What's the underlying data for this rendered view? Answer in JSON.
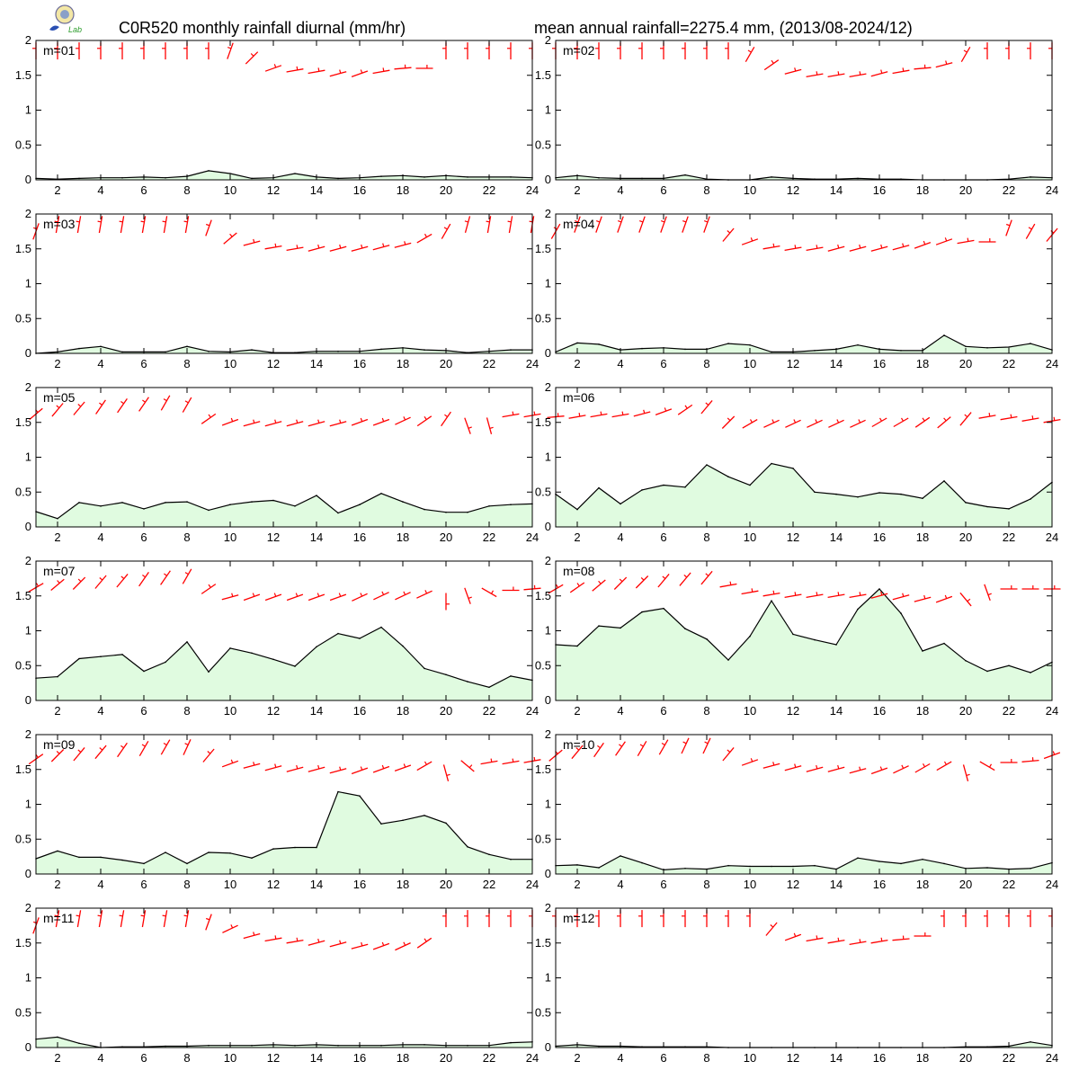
{
  "figure": {
    "title_left": "C0R520 monthly rainfall diurnal (mm/hr)",
    "title_right": "mean annual rainfall=2275.4 mm, (2013/08-2024/12)",
    "logo_text": "Lab"
  },
  "chart_data": {
    "type": "area",
    "x_ticks": [
      2,
      4,
      6,
      8,
      10,
      12,
      14,
      16,
      18,
      20,
      22,
      24
    ],
    "y_ticks": [
      "0",
      "0.5",
      "1",
      "1.5",
      "2"
    ],
    "xlim": [
      1,
      24
    ],
    "ylim": [
      0,
      2
    ],
    "colors": {
      "fill": "#e0fbe0",
      "line": "#000000",
      "wind": "#ff0000"
    },
    "wind_barbs": "red wind-direction barbs drawn along the top of every panel, one per hour",
    "panels": [
      {
        "label": "m=01",
        "x": [
          1,
          2,
          3,
          4,
          5,
          6,
          7,
          8,
          9,
          10,
          11,
          12,
          13,
          14,
          15,
          16,
          17,
          18,
          19,
          20,
          21,
          22,
          23,
          24
        ],
        "values": [
          0.02,
          0.01,
          0.02,
          0.03,
          0.03,
          0.04,
          0.03,
          0.05,
          0.13,
          0.09,
          0.02,
          0.03,
          0.09,
          0.04,
          0.02,
          0.03,
          0.05,
          0.06,
          0.04,
          0.06,
          0.04,
          0.04,
          0.04,
          0.03
        ],
        "barb_dirs": [
          0,
          0,
          0,
          0,
          0,
          0,
          0,
          0,
          0,
          20,
          45,
          70,
          80,
          80,
          75,
          70,
          80,
          85,
          90,
          0,
          0,
          0,
          0,
          0
        ],
        "barb_levels": [
          1.85,
          1.85,
          1.85,
          1.85,
          1.85,
          1.85,
          1.85,
          1.85,
          1.85,
          1.85,
          1.75,
          1.6,
          1.57,
          1.55,
          1.52,
          1.52,
          1.55,
          1.6,
          1.6,
          1.85,
          1.85,
          1.85,
          1.85,
          1.85
        ]
      },
      {
        "label": "m=02",
        "x": [
          1,
          2,
          3,
          4,
          5,
          6,
          7,
          8,
          9,
          10,
          11,
          12,
          13,
          14,
          15,
          16,
          17,
          18,
          19,
          20,
          21,
          22,
          23,
          24
        ],
        "values": [
          0.03,
          0.06,
          0.03,
          0.02,
          0.02,
          0.02,
          0.07,
          0.01,
          0.0,
          0.0,
          0.04,
          0.02,
          0.01,
          0.01,
          0.02,
          0.01,
          0.01,
          0.0,
          0.0,
          0.0,
          0.0,
          0.01,
          0.04,
          0.03
        ],
        "barb_dirs": [
          0,
          0,
          0,
          0,
          0,
          0,
          0,
          0,
          0,
          30,
          55,
          75,
          80,
          80,
          80,
          75,
          80,
          85,
          75,
          30,
          0,
          0,
          0,
          0
        ],
        "barb_levels": [
          1.85,
          1.85,
          1.85,
          1.85,
          1.85,
          1.85,
          1.85,
          1.85,
          1.85,
          1.8,
          1.65,
          1.55,
          1.5,
          1.5,
          1.5,
          1.52,
          1.55,
          1.6,
          1.65,
          1.8,
          1.85,
          1.85,
          1.85,
          1.85
        ]
      },
      {
        "label": "m=03",
        "x": [
          1,
          2,
          3,
          4,
          5,
          6,
          7,
          8,
          9,
          10,
          11,
          12,
          13,
          14,
          15,
          16,
          17,
          18,
          19,
          20,
          21,
          22,
          23,
          24
        ],
        "values": [
          0.0,
          0.02,
          0.07,
          0.1,
          0.02,
          0.02,
          0.02,
          0.1,
          0.03,
          0.02,
          0.05,
          0.01,
          0.01,
          0.03,
          0.03,
          0.03,
          0.06,
          0.08,
          0.05,
          0.04,
          0.01,
          0.03,
          0.05,
          0.05
        ],
        "barb_dirs": [
          20,
          10,
          10,
          10,
          10,
          10,
          10,
          10,
          20,
          50,
          75,
          80,
          80,
          75,
          75,
          75,
          75,
          75,
          60,
          30,
          15,
          10,
          10,
          10
        ],
        "barb_levels": [
          1.75,
          1.85,
          1.85,
          1.85,
          1.85,
          1.85,
          1.85,
          1.85,
          1.8,
          1.65,
          1.58,
          1.52,
          1.5,
          1.5,
          1.5,
          1.5,
          1.52,
          1.55,
          1.65,
          1.75,
          1.85,
          1.85,
          1.85,
          1.85
        ]
      },
      {
        "label": "m=04",
        "x": [
          1,
          2,
          3,
          4,
          5,
          6,
          7,
          8,
          9,
          10,
          11,
          12,
          13,
          14,
          15,
          16,
          17,
          18,
          19,
          20,
          21,
          22,
          23,
          24
        ],
        "values": [
          0.02,
          0.15,
          0.13,
          0.05,
          0.07,
          0.08,
          0.06,
          0.06,
          0.14,
          0.12,
          0.02,
          0.02,
          0.04,
          0.06,
          0.12,
          0.06,
          0.04,
          0.04,
          0.26,
          0.1,
          0.08,
          0.09,
          0.14,
          0.05
        ],
        "barb_dirs": [
          30,
          20,
          20,
          20,
          20,
          20,
          20,
          20,
          40,
          70,
          80,
          80,
          80,
          75,
          75,
          75,
          75,
          70,
          70,
          80,
          90,
          20,
          30,
          40
        ],
        "barb_levels": [
          1.75,
          1.85,
          1.85,
          1.85,
          1.85,
          1.85,
          1.85,
          1.85,
          1.7,
          1.6,
          1.52,
          1.5,
          1.5,
          1.5,
          1.5,
          1.5,
          1.52,
          1.55,
          1.6,
          1.6,
          1.6,
          1.8,
          1.75,
          1.7
        ]
      },
      {
        "label": "m=05",
        "x": [
          1,
          2,
          3,
          4,
          5,
          6,
          7,
          8,
          9,
          10,
          11,
          12,
          13,
          14,
          15,
          16,
          17,
          18,
          19,
          20,
          21,
          22,
          23,
          24
        ],
        "values": [
          0.22,
          0.12,
          0.35,
          0.3,
          0.35,
          0.26,
          0.35,
          0.36,
          0.24,
          0.32,
          0.36,
          0.38,
          0.3,
          0.45,
          0.2,
          0.32,
          0.48,
          0.36,
          0.25,
          0.21,
          0.21,
          0.3,
          0.32,
          0.33
        ],
        "barb_dirs": [
          50,
          40,
          40,
          35,
          35,
          35,
          30,
          30,
          55,
          70,
          75,
          75,
          75,
          75,
          75,
          70,
          70,
          65,
          55,
          35,
          160,
          165,
          80,
          80
        ],
        "barb_levels": [
          1.62,
          1.68,
          1.7,
          1.72,
          1.74,
          1.76,
          1.78,
          1.75,
          1.55,
          1.5,
          1.48,
          1.48,
          1.48,
          1.48,
          1.48,
          1.5,
          1.5,
          1.52,
          1.52,
          1.55,
          1.45,
          1.45,
          1.6,
          1.6
        ]
      },
      {
        "label": "m=06",
        "x": [
          1,
          2,
          3,
          4,
          5,
          6,
          7,
          8,
          9,
          10,
          11,
          12,
          13,
          14,
          15,
          16,
          17,
          18,
          19,
          20,
          21,
          22,
          23,
          24
        ],
        "values": [
          0.47,
          0.25,
          0.56,
          0.33,
          0.53,
          0.6,
          0.57,
          0.89,
          0.72,
          0.6,
          0.91,
          0.84,
          0.5,
          0.47,
          0.43,
          0.49,
          0.47,
          0.41,
          0.66,
          0.35,
          0.29,
          0.26,
          0.4,
          0.64
        ],
        "barb_dirs": [
          85,
          80,
          80,
          80,
          75,
          70,
          55,
          40,
          45,
          60,
          65,
          65,
          65,
          65,
          65,
          60,
          60,
          55,
          50,
          40,
          80,
          80,
          80,
          80
        ],
        "barb_levels": [
          1.58,
          1.58,
          1.6,
          1.6,
          1.62,
          1.65,
          1.68,
          1.72,
          1.5,
          1.48,
          1.48,
          1.48,
          1.48,
          1.48,
          1.48,
          1.5,
          1.5,
          1.5,
          1.5,
          1.55,
          1.58,
          1.56,
          1.54,
          1.52
        ]
      },
      {
        "label": "m=07",
        "x": [
          1,
          2,
          3,
          4,
          5,
          6,
          7,
          8,
          9,
          10,
          11,
          12,
          13,
          14,
          15,
          16,
          17,
          18,
          19,
          20,
          21,
          22,
          23,
          24
        ],
        "values": [
          0.32,
          0.34,
          0.6,
          0.63,
          0.66,
          0.42,
          0.55,
          0.84,
          0.41,
          0.75,
          0.68,
          0.59,
          0.49,
          0.77,
          0.96,
          0.89,
          1.05,
          0.78,
          0.46,
          0.37,
          0.27,
          0.19,
          0.35,
          0.29
        ],
        "barb_dirs": [
          60,
          50,
          45,
          40,
          40,
          35,
          35,
          30,
          55,
          75,
          70,
          70,
          70,
          70,
          70,
          65,
          65,
          65,
          65,
          180,
          160,
          120,
          90,
          85
        ],
        "barb_levels": [
          1.62,
          1.66,
          1.68,
          1.7,
          1.72,
          1.74,
          1.76,
          1.78,
          1.6,
          1.48,
          1.48,
          1.48,
          1.48,
          1.48,
          1.48,
          1.48,
          1.5,
          1.5,
          1.52,
          1.42,
          1.5,
          1.55,
          1.58,
          1.6
        ]
      },
      {
        "label": "m=08",
        "x": [
          1,
          2,
          3,
          4,
          5,
          6,
          7,
          8,
          9,
          10,
          11,
          12,
          13,
          14,
          15,
          16,
          17,
          18,
          19,
          20,
          21,
          22,
          23,
          24
        ],
        "values": [
          0.8,
          0.78,
          1.07,
          1.04,
          1.27,
          1.32,
          1.03,
          0.88,
          0.58,
          0.92,
          1.43,
          0.95,
          0.87,
          0.8,
          1.31,
          1.6,
          1.25,
          0.71,
          0.82,
          0.57,
          0.42,
          0.5,
          0.4,
          0.55
        ],
        "barb_dirs": [
          60,
          55,
          50,
          45,
          45,
          40,
          40,
          40,
          80,
          80,
          80,
          80,
          80,
          80,
          80,
          75,
          75,
          75,
          70,
          140,
          160,
          90,
          90,
          90
        ],
        "barb_levels": [
          1.6,
          1.62,
          1.65,
          1.68,
          1.7,
          1.72,
          1.74,
          1.76,
          1.65,
          1.55,
          1.52,
          1.5,
          1.5,
          1.5,
          1.5,
          1.5,
          1.48,
          1.45,
          1.45,
          1.45,
          1.55,
          1.6,
          1.6,
          1.6
        ]
      },
      {
        "label": "m=09",
        "x": [
          1,
          2,
          3,
          4,
          5,
          6,
          7,
          8,
          9,
          10,
          11,
          12,
          13,
          14,
          15,
          16,
          17,
          18,
          19,
          20,
          21,
          22,
          23,
          24
        ],
        "values": [
          0.22,
          0.33,
          0.24,
          0.24,
          0.2,
          0.15,
          0.31,
          0.15,
          0.31,
          0.3,
          0.23,
          0.36,
          0.38,
          0.38,
          1.18,
          1.12,
          0.72,
          0.77,
          0.84,
          0.73,
          0.39,
          0.28,
          0.21,
          0.21
        ],
        "barb_dirs": [
          55,
          45,
          40,
          40,
          35,
          30,
          30,
          25,
          40,
          70,
          75,
          75,
          75,
          75,
          75,
          70,
          70,
          70,
          60,
          165,
          130,
          80,
          80,
          80
        ],
        "barb_levels": [
          1.65,
          1.7,
          1.72,
          1.75,
          1.78,
          1.8,
          1.82,
          1.82,
          1.7,
          1.58,
          1.55,
          1.52,
          1.5,
          1.5,
          1.48,
          1.48,
          1.5,
          1.52,
          1.55,
          1.45,
          1.55,
          1.6,
          1.6,
          1.62
        ]
      },
      {
        "label": "m=10",
        "x": [
          1,
          2,
          3,
          4,
          5,
          6,
          7,
          8,
          9,
          10,
          11,
          12,
          13,
          14,
          15,
          16,
          17,
          18,
          19,
          20,
          21,
          22,
          23,
          24
        ],
        "values": [
          0.12,
          0.13,
          0.09,
          0.26,
          0.16,
          0.06,
          0.08,
          0.07,
          0.12,
          0.11,
          0.11,
          0.11,
          0.12,
          0.07,
          0.23,
          0.18,
          0.15,
          0.21,
          0.15,
          0.08,
          0.09,
          0.07,
          0.08,
          0.16
        ],
        "barb_dirs": [
          50,
          40,
          35,
          35,
          30,
          30,
          25,
          25,
          40,
          70,
          75,
          75,
          75,
          75,
          75,
          70,
          65,
          60,
          60,
          165,
          120,
          90,
          85,
          70
        ],
        "barb_levels": [
          1.7,
          1.75,
          1.78,
          1.8,
          1.8,
          1.82,
          1.84,
          1.84,
          1.72,
          1.6,
          1.55,
          1.52,
          1.5,
          1.5,
          1.48,
          1.48,
          1.5,
          1.52,
          1.55,
          1.45,
          1.55,
          1.6,
          1.62,
          1.7
        ]
      },
      {
        "label": "m=11",
        "x": [
          1,
          2,
          3,
          4,
          5,
          6,
          7,
          8,
          9,
          10,
          11,
          12,
          13,
          14,
          15,
          16,
          17,
          18,
          19,
          20,
          21,
          22,
          23,
          24
        ],
        "values": [
          0.12,
          0.15,
          0.06,
          0.0,
          0.01,
          0.01,
          0.02,
          0.02,
          0.03,
          0.03,
          0.03,
          0.04,
          0.03,
          0.04,
          0.03,
          0.03,
          0.03,
          0.04,
          0.04,
          0.03,
          0.03,
          0.03,
          0.07,
          0.08
        ],
        "barb_dirs": [
          20,
          10,
          10,
          10,
          10,
          10,
          10,
          10,
          20,
          65,
          75,
          80,
          80,
          75,
          75,
          75,
          70,
          65,
          55,
          0,
          0,
          0,
          0,
          0
        ],
        "barb_levels": [
          1.75,
          1.85,
          1.85,
          1.85,
          1.85,
          1.85,
          1.85,
          1.85,
          1.8,
          1.7,
          1.6,
          1.55,
          1.52,
          1.5,
          1.48,
          1.45,
          1.45,
          1.45,
          1.5,
          1.85,
          1.85,
          1.85,
          1.85,
          1.85
        ]
      },
      {
        "label": "m=12",
        "x": [
          1,
          2,
          3,
          4,
          5,
          6,
          7,
          8,
          9,
          10,
          11,
          12,
          13,
          14,
          15,
          16,
          17,
          18,
          19,
          20,
          21,
          22,
          23,
          24
        ],
        "values": [
          0.02,
          0.04,
          0.02,
          0.02,
          0.01,
          0.01,
          0.01,
          0.01,
          0.0,
          0.0,
          0.0,
          0.0,
          0.0,
          0.0,
          0.0,
          0.0,
          0.0,
          0.0,
          0.0,
          0.01,
          0.01,
          0.02,
          0.08,
          0.03
        ],
        "barb_dirs": [
          0,
          0,
          0,
          0,
          0,
          0,
          0,
          0,
          0,
          0,
          40,
          70,
          80,
          80,
          80,
          80,
          85,
          90,
          0,
          0,
          0,
          0,
          0,
          0
        ],
        "barb_levels": [
          1.85,
          1.85,
          1.85,
          1.85,
          1.85,
          1.85,
          1.85,
          1.85,
          1.85,
          1.85,
          1.7,
          1.58,
          1.55,
          1.52,
          1.5,
          1.52,
          1.55,
          1.6,
          1.85,
          1.85,
          1.85,
          1.85,
          1.85,
          1.85
        ]
      }
    ]
  }
}
